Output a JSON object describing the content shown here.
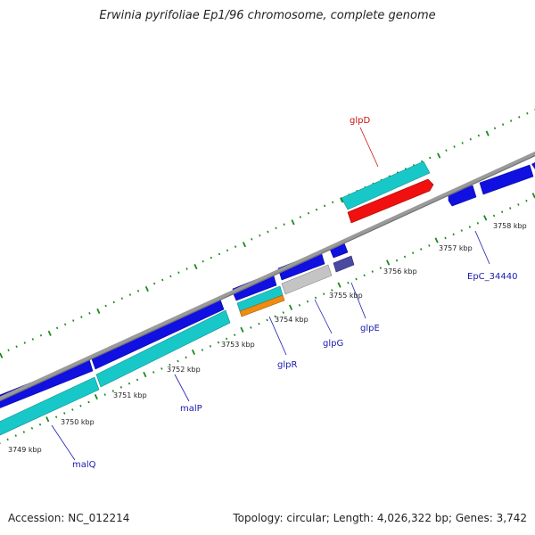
{
  "title": "Erwinia pyrifoliae Ep1/96 chromosome, complete genome",
  "footer": {
    "accession": "Accession: NC_012214",
    "summary": "Topology: circular; Length: 4,026,322 bp; Genes: 3,742"
  },
  "colors": {
    "backbone": "#8c8c8c",
    "tick": "#1a8a1a",
    "cds_blue": "#1010e0",
    "cds_cyan": "#18c8c8",
    "cds_red": "#f01010",
    "cds_gray": "#c0c0c0",
    "cds_orange": "#f08a10",
    "cds_navy": "#4a4aa0",
    "label_blue": "#1a1ab0",
    "label_red": "#d01010"
  },
  "scale": {
    "ticks": [
      {
        "label": "3749 kbp"
      },
      {
        "label": "3750 kbp"
      },
      {
        "label": "3751 kbp"
      },
      {
        "label": "3752 kbp"
      },
      {
        "label": "3753 kbp"
      },
      {
        "label": "3754 kbp"
      },
      {
        "label": "3755 kbp"
      },
      {
        "label": "3756 kbp"
      },
      {
        "label": "3757 kbp"
      },
      {
        "label": "3758 kbp"
      }
    ]
  },
  "genes": [
    {
      "name": "malQ",
      "color": "label_blue"
    },
    {
      "name": "malP",
      "color": "label_blue"
    },
    {
      "name": "glpR",
      "color": "label_blue"
    },
    {
      "name": "glpG",
      "color": "label_blue"
    },
    {
      "name": "glpE",
      "color": "label_blue"
    },
    {
      "name": "glpD",
      "color": "label_red"
    },
    {
      "name": "EpC_34440",
      "color": "label_blue"
    }
  ]
}
